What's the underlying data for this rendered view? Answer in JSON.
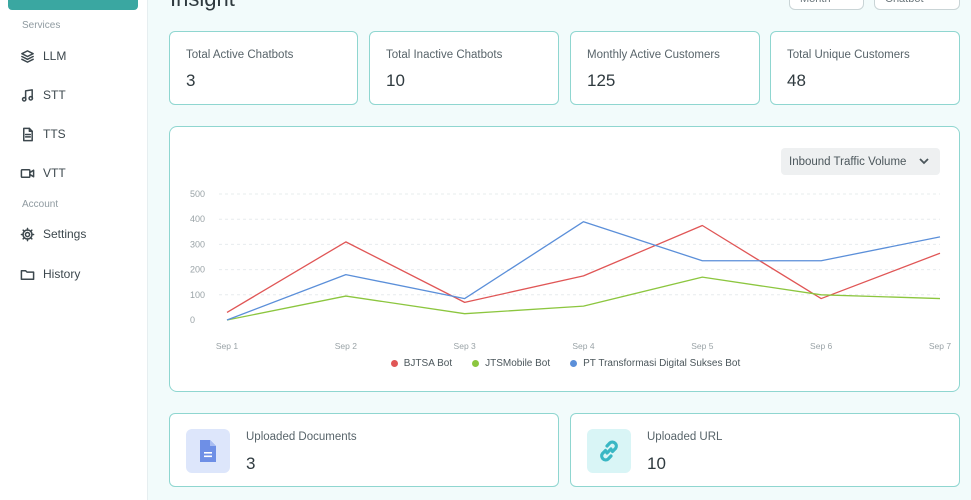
{
  "sidebar": {
    "section_services": "Services",
    "section_account": "Account",
    "items": [
      {
        "label": "LLM",
        "icon": "layers-icon"
      },
      {
        "label": "STT",
        "icon": "music-note-icon"
      },
      {
        "label": "TTS",
        "icon": "document-icon"
      },
      {
        "label": "VTT",
        "icon": "video-camera-icon"
      },
      {
        "label": "Settings",
        "icon": "gear-icon"
      },
      {
        "label": "History",
        "icon": "folder-icon"
      }
    ],
    "accent": "#3aa7a1"
  },
  "header": {
    "title": "Insight",
    "period_select": "Month",
    "type_select": "Chatbot"
  },
  "stats": [
    {
      "label": "Total Active Chatbots",
      "value": "3"
    },
    {
      "label": "Total Inactive Chatbots",
      "value": "10"
    },
    {
      "label": "Monthly Active Customers",
      "value": "125"
    },
    {
      "label": "Total Unique Customers",
      "value": "48"
    }
  ],
  "chart": {
    "metric_select": "Inbound Traffic Volume"
  },
  "chart_data": {
    "type": "line",
    "x": [
      "Sep 1",
      "Sep 2",
      "Sep 3",
      "Sep 4",
      "Sep 5",
      "Sep 6",
      "Sep 7"
    ],
    "ylim": [
      0,
      500
    ],
    "yticks": [
      "0",
      "100",
      "200",
      "300",
      "400",
      "500"
    ],
    "grid": true,
    "legend": "bottom",
    "series": [
      {
        "name": "BJTSA Bot",
        "color": "#e05656",
        "values": [
          30,
          310,
          70,
          175,
          375,
          85,
          265
        ]
      },
      {
        "name": "JTSMobile Bot",
        "color": "#8cc63f",
        "values": [
          0,
          95,
          25,
          55,
          170,
          100,
          85
        ]
      },
      {
        "name": "PT Transformasi Digital Sukses Bot",
        "color": "#5b8fd9",
        "values": [
          0,
          180,
          85,
          390,
          235,
          235,
          330
        ]
      }
    ]
  },
  "tiles": [
    {
      "label": "Uploaded Documents",
      "value": "3",
      "icon": "document-icon",
      "bg": "#dde6fb",
      "fg": "#6e8fe6"
    },
    {
      "label": "Uploaded URL",
      "value": "10",
      "icon": "link-icon",
      "bg": "#d9f5f6",
      "fg": "#39b7c4"
    }
  ]
}
